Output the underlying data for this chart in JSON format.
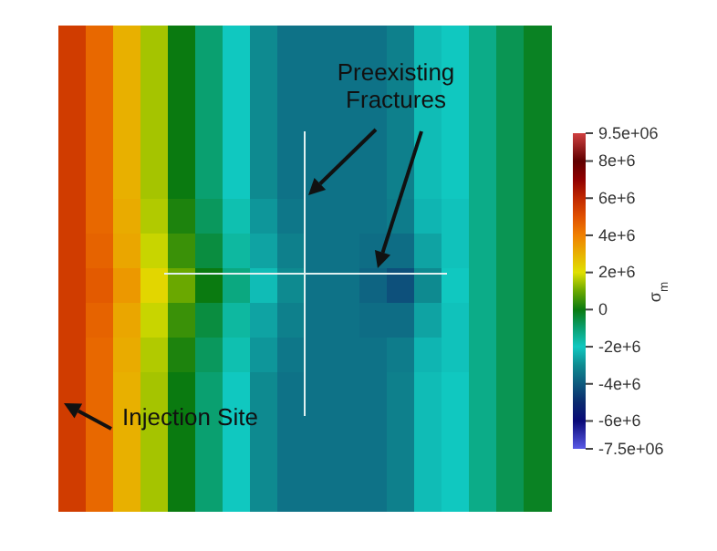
{
  "chart_data": {
    "type": "heatmap",
    "categories": [
      null,
      null,
      null,
      null,
      null,
      null,
      null,
      null,
      null,
      null,
      null,
      null,
      null,
      null,
      null,
      null,
      null,
      null
    ],
    "y_categories": [
      null,
      null,
      null,
      null,
      null,
      null,
      null,
      null,
      null,
      null,
      null,
      null,
      null,
      null
    ],
    "cells": [
      [
        5500000.0,
        4500000.0,
        3000000.0,
        1500000.0,
        0,
        -1000000.0,
        -2000000.0,
        -3000000.0,
        -3500000.0,
        -3500000.0,
        -3500000.0,
        -3500000.0,
        -3200000.0,
        -2200000.0,
        -2000000.0,
        -1300000.0,
        -700000.0,
        -200000.0
      ],
      [
        5500000.0,
        4500000.0,
        3000000.0,
        1500000.0,
        0,
        -1000000.0,
        -2000000.0,
        -3000000.0,
        -3500000.0,
        -3500000.0,
        -3500000.0,
        -3500000.0,
        -3200000.0,
        -2200000.0,
        -2000000.0,
        -1300000.0,
        -700000.0,
        -200000.0
      ],
      [
        5500000.0,
        4500000.0,
        3000000.0,
        1500000.0,
        0,
        -1000000.0,
        -2000000.0,
        -3000000.0,
        -3500000.0,
        -3500000.0,
        -3500000.0,
        -3500000.0,
        -3200000.0,
        -2200000.0,
        -2000000.0,
        -1300000.0,
        -700000.0,
        -200000.0
      ],
      [
        5500000.0,
        4500000.0,
        3000000.0,
        1500000.0,
        0,
        -1000000.0,
        -2000000.0,
        -3000000.0,
        -3500000.0,
        -3500000.0,
        -3500000.0,
        -3500000.0,
        -3200000.0,
        -2200000.0,
        -2000000.0,
        -1300000.0,
        -700000.0,
        -200000.0
      ],
      [
        5500000.0,
        4500000.0,
        3000000.0,
        1500000.0,
        0,
        -1000000.0,
        -2000000.0,
        -3000000.0,
        -3500000.0,
        -3500000.0,
        -3500000.0,
        -3500000.0,
        -3200000.0,
        -2200000.0,
        -2000000.0,
        -1300000.0,
        -700000.0,
        -200000.0
      ],
      [
        5500000.0,
        4500000.0,
        3100000.0,
        1600000.0,
        200000.0,
        -800000.0,
        -1800000.0,
        -2800000.0,
        -3400000.0,
        -3500000.0,
        -3500000.0,
        -3500000.0,
        -3300000.0,
        -2300000.0,
        -2100000.0,
        -1300000.0,
        -700000.0,
        -200000.0
      ],
      [
        5500000.0,
        4600000.0,
        3200000.0,
        1800000.0,
        500000.0,
        -500000.0,
        -1600000.0,
        -2600000.0,
        -3200000.0,
        -3500000.0,
        -3500000.0,
        -3600000.0,
        -3600000.0,
        -2600000.0,
        -2100000.0,
        -1300000.0,
        -700000.0,
        -200000.0
      ],
      [
        5500000.0,
        4800000.0,
        3500000.0,
        2200000.0,
        1000000.0,
        0,
        -1200000.0,
        -2200000.0,
        -3000000.0,
        -3500000.0,
        -3500000.0,
        -3800000.0,
        -4200000.0,
        -3000000.0,
        -2000000.0,
        -1300000.0,
        -700000.0,
        -200000.0
      ],
      [
        5500000.0,
        4600000.0,
        3200000.0,
        1800000.0,
        500000.0,
        -500000.0,
        -1600000.0,
        -2600000.0,
        -3200000.0,
        -3500000.0,
        -3500000.0,
        -3600000.0,
        -3600000.0,
        -2600000.0,
        -2100000.0,
        -1300000.0,
        -700000.0,
        -200000.0
      ],
      [
        5500000.0,
        4500000.0,
        3100000.0,
        1600000.0,
        200000.0,
        -800000.0,
        -1800000.0,
        -2800000.0,
        -3400000.0,
        -3500000.0,
        -3500000.0,
        -3500000.0,
        -3300000.0,
        -2300000.0,
        -2100000.0,
        -1300000.0,
        -700000.0,
        -200000.0
      ],
      [
        5500000.0,
        4500000.0,
        3000000.0,
        1500000.0,
        0,
        -1000000.0,
        -2000000.0,
        -3000000.0,
        -3500000.0,
        -3500000.0,
        -3500000.0,
        -3500000.0,
        -3200000.0,
        -2200000.0,
        -2000000.0,
        -1300000.0,
        -700000.0,
        -200000.0
      ],
      [
        5500000.0,
        4500000.0,
        3000000.0,
        1500000.0,
        0,
        -1000000.0,
        -2000000.0,
        -3000000.0,
        -3500000.0,
        -3500000.0,
        -3500000.0,
        -3500000.0,
        -3200000.0,
        -2200000.0,
        -2000000.0,
        -1300000.0,
        -700000.0,
        -200000.0
      ],
      [
        5500000.0,
        4500000.0,
        3000000.0,
        1500000.0,
        0,
        -1000000.0,
        -2000000.0,
        -3000000.0,
        -3500000.0,
        -3500000.0,
        -3500000.0,
        -3500000.0,
        -3200000.0,
        -2200000.0,
        -2000000.0,
        -1300000.0,
        -700000.0,
        -200000.0
      ],
      [
        5500000.0,
        4500000.0,
        3000000.0,
        1500000.0,
        0,
        -1000000.0,
        -2000000.0,
        -3000000.0,
        -3500000.0,
        -3500000.0,
        -3500000.0,
        -3500000.0,
        -3200000.0,
        -2200000.0,
        -2000000.0,
        -1300000.0,
        -700000.0,
        -200000.0
      ]
    ],
    "clim": [
      -7500000.0,
      9500000.0
    ],
    "cticks": [
      {
        "value": 9500000.0,
        "label": "9.5e+06"
      },
      {
        "value": 8000000.0,
        "label": "8e+6"
      },
      {
        "value": 6000000.0,
        "label": "6e+6"
      },
      {
        "value": 4000000.0,
        "label": "4e+6"
      },
      {
        "value": 2000000.0,
        "label": "2e+6"
      },
      0,
      {
        "value": -2000000.0,
        "label": "-2e+6"
      },
      {
        "value": -4000000.0,
        "label": "-4e+6"
      },
      {
        "value": -6000000.0,
        "label": "-6e+6"
      },
      {
        "value": -7500000.0,
        "label": "-7.5e+06"
      }
    ],
    "clabel": "σ$_{m}$",
    "tick_labels": false,
    "annotations": [
      "Preexisting Fractures",
      "Injection Site"
    ]
  }
}
